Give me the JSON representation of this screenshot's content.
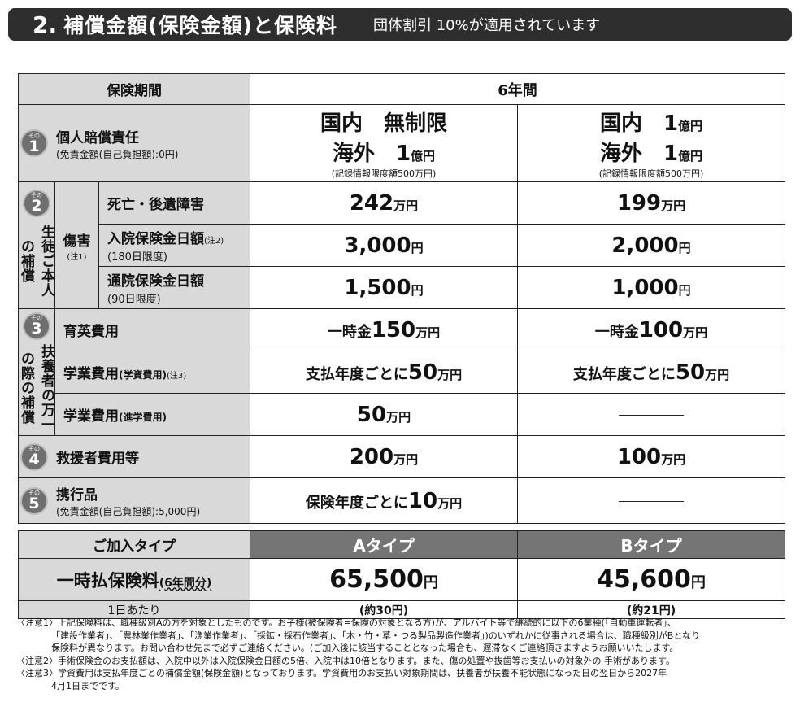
{
  "header": {
    "number": "2.",
    "title": "補償金額(保険金額)と保険料",
    "discount": "団体割引 10%が適用されています"
  },
  "table": {
    "period_label": "保険期間",
    "period_value": "6年間",
    "item1": {
      "badge_small": "その",
      "badge_num": "1",
      "label": "個人賠償責任",
      "sublabel": "(免責金額(自己負担額):0円)",
      "a_line1": "国内　無制限",
      "a_line2_prefix": "海外　",
      "a_line2_num": "1",
      "a_line2_unit": "億円",
      "a_note": "(記録情報限度額500万円)",
      "b_line1_prefix": "国内　",
      "b_line1_num": "1",
      "b_line1_unit": "億円",
      "b_line2_prefix": "海外　",
      "b_line2_num": "1",
      "b_line2_unit": "億円",
      "b_note": "(記録情報限度額500万円)"
    },
    "item2": {
      "badge_small": "その",
      "badge_num": "2",
      "group_label": "生徒ご本人の補償",
      "injury_label": "傷害",
      "injury_note": "(注1)",
      "rows": [
        {
          "label": "死亡・後遺障害",
          "sub": "",
          "note": "",
          "a_num": "242",
          "a_unit": "万円",
          "b_num": "199",
          "b_unit": "万円"
        },
        {
          "label": "入院保険金日額",
          "sub": "(180日限度)",
          "note": "(注2)",
          "a_num": "3,000",
          "a_unit": "円",
          "b_num": "2,000",
          "b_unit": "円"
        },
        {
          "label": "通院保険金日額",
          "sub": "(90日限度)",
          "note": "",
          "a_num": "1,500",
          "a_unit": "円",
          "b_num": "1,000",
          "b_unit": "円"
        }
      ]
    },
    "item3": {
      "badge_small": "その",
      "badge_num": "3",
      "group_label": "扶養者の万一の際の補償",
      "rows": [
        {
          "label": "育英費用",
          "label_small": "",
          "note": "",
          "a_prefix": "一時金",
          "a_num": "150",
          "a_unit": "万円",
          "b_prefix": "一時金",
          "b_num": "100",
          "b_unit": "万円"
        },
        {
          "label": "学業費用",
          "label_small": "(学資費用)",
          "note": "(注3)",
          "a_prefix": "支払年度ごとに",
          "a_num": "50",
          "a_unit": "万円",
          "b_prefix": "支払年度ごとに",
          "b_num": "50",
          "b_unit": "万円"
        },
        {
          "label": "学業費用",
          "label_small": "(進学費用)",
          "note": "",
          "a_prefix": "",
          "a_num": "50",
          "a_unit": "万円",
          "b_prefix": "",
          "b_num": "",
          "b_unit": ""
        }
      ]
    },
    "item4": {
      "badge_small": "その",
      "badge_num": "4",
      "label": "救援者費用等",
      "a_num": "200",
      "a_unit": "万円",
      "b_num": "100",
      "b_unit": "万円"
    },
    "item5": {
      "badge_small": "その",
      "badge_num": "5",
      "label": "携行品",
      "sublabel": "(免責金額(自己負担額):5,000円)",
      "a_prefix": "保険年度ごとに",
      "a_num": "10",
      "a_unit": "万円"
    }
  },
  "plan": {
    "type_label": "ご加入タイプ",
    "type_a": "Aタイプ",
    "type_b": "Bタイプ",
    "premium_label": "一時払保険料",
    "premium_small": "(6年間分)",
    "premium_a": "65,500",
    "premium_b": "45,600",
    "yen": "円",
    "perday_label": "1日あたり",
    "perday_a": "(約30円)",
    "perday_b": "(約21円)"
  },
  "notes": {
    "n1_line1": "〈注意1〉上記保険料は、職種級別Aの方を対象としたものです。お子様(被保険者=保険の対象となる方)が、アルバイト等で継続的に以下の6業種(「自動車運転者」、",
    "n1_line2": "「建設作業者」、「農林業作業者」、「漁業作業者」、「採鉱・採石作業者」、「木・竹・草・つる製品製造作業者」)のいずれかに従事される場合は、職種級別がBとなり",
    "n1_line3": "保険料が異なります。お問い合わせ先まで必ずご連絡ください。(ご加入後に該当することとなった場合も、遅滞なくご連絡頂きますようお願いいたします。",
    "n2": "〈注意2〉手術保険金のお支払額は、入院中以外は入院保険金日額の5倍、入院中は10倍となります。また、傷の処置や抜歯等お支払いの対象外の 手術があります。",
    "n3_line1": "〈注意3〉学資費用は支払年度ごとの補償金額(保険金額)となっております。学資費用のお支払い対象期間は、扶養者が扶養不能状態になった日の翌日から2027年",
    "n3_line2": "4月1日までです。"
  }
}
